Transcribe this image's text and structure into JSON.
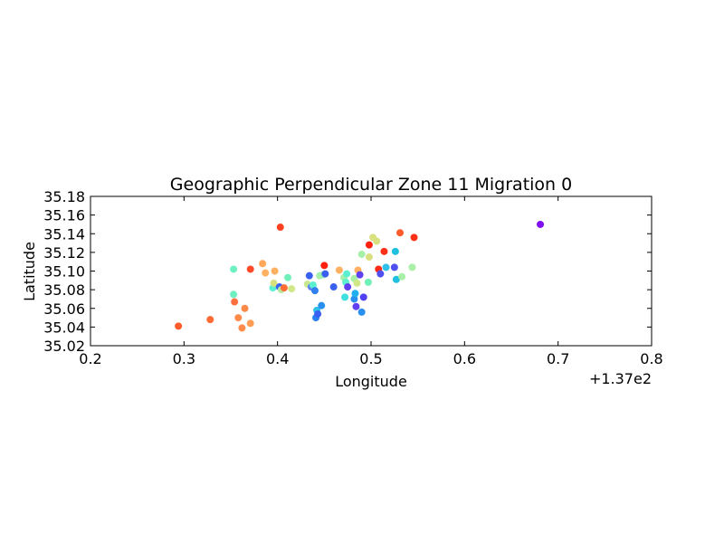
{
  "chart_data": {
    "type": "scatter",
    "title": "Geographic Perpendicular Zone 11 Migration 0",
    "xlabel": "Longitude",
    "ylabel": "Latitude",
    "x_offset_label": "+1.37e2",
    "xlim": [
      137.2,
      137.8
    ],
    "ylim": [
      35.02,
      35.18
    ],
    "x_ticks": [
      137.2,
      137.3,
      137.4,
      137.5,
      137.6,
      137.7,
      137.8
    ],
    "x_tick_labels": [
      "0.2",
      "0.3",
      "0.4",
      "0.5",
      "0.6",
      "0.7",
      "0.8"
    ],
    "y_ticks": [
      35.02,
      35.04,
      35.06,
      35.08,
      35.1,
      35.12,
      35.14,
      35.16,
      35.18
    ],
    "y_tick_labels": [
      "35.02",
      "35.04",
      "35.06",
      "35.08",
      "35.10",
      "35.12",
      "35.14",
      "35.16",
      "35.18"
    ],
    "grid": false,
    "legend": "none",
    "points": [
      {
        "x": 137.294,
        "y": 35.041,
        "color": "#ff5a2b"
      },
      {
        "x": 137.328,
        "y": 35.048,
        "color": "#ff6a35"
      },
      {
        "x": 137.353,
        "y": 35.102,
        "color": "#6ef0c0"
      },
      {
        "x": 137.353,
        "y": 35.075,
        "color": "#6ef0c0"
      },
      {
        "x": 137.354,
        "y": 35.067,
        "color": "#ff7040"
      },
      {
        "x": 137.358,
        "y": 35.05,
        "color": "#ff8a4a"
      },
      {
        "x": 137.362,
        "y": 35.039,
        "color": "#ff8a4a"
      },
      {
        "x": 137.365,
        "y": 35.06,
        "color": "#ff8a4a"
      },
      {
        "x": 137.371,
        "y": 35.044,
        "color": "#ff9c55"
      },
      {
        "x": 137.371,
        "y": 35.102,
        "color": "#ff4a28"
      },
      {
        "x": 137.384,
        "y": 35.108,
        "color": "#ffa85a"
      },
      {
        "x": 137.387,
        "y": 35.098,
        "color": "#ffb060"
      },
      {
        "x": 137.395,
        "y": 35.082,
        "color": "#5af0d0"
      },
      {
        "x": 137.396,
        "y": 35.087,
        "color": "#d8e080"
      },
      {
        "x": 137.397,
        "y": 35.1,
        "color": "#ffb060"
      },
      {
        "x": 137.402,
        "y": 35.083,
        "color": "#3a60f0"
      },
      {
        "x": 137.403,
        "y": 35.147,
        "color": "#ff4020"
      },
      {
        "x": 137.404,
        "y": 35.08,
        "color": "#b8e8a0"
      },
      {
        "x": 137.407,
        "y": 35.082,
        "color": "#ff6a35"
      },
      {
        "x": 137.411,
        "y": 35.093,
        "color": "#70f0b8"
      },
      {
        "x": 137.415,
        "y": 35.081,
        "color": "#d0e888"
      },
      {
        "x": 137.432,
        "y": 35.086,
        "color": "#c8e890"
      },
      {
        "x": 137.434,
        "y": 35.095,
        "color": "#3a60f0"
      },
      {
        "x": 137.436,
        "y": 35.083,
        "color": "#6080f0"
      },
      {
        "x": 137.438,
        "y": 35.085,
        "color": "#5af0d0"
      },
      {
        "x": 137.44,
        "y": 35.079,
        "color": "#3080f0"
      },
      {
        "x": 137.441,
        "y": 35.05,
        "color": "#2a80f0"
      },
      {
        "x": 137.442,
        "y": 35.058,
        "color": "#30c0e8"
      },
      {
        "x": 137.443,
        "y": 35.054,
        "color": "#3a60f0"
      },
      {
        "x": 137.445,
        "y": 35.095,
        "color": "#a8f0a8"
      },
      {
        "x": 137.447,
        "y": 35.063,
        "color": "#2a90f0"
      },
      {
        "x": 137.449,
        "y": 35.096,
        "color": "#9af0b0"
      },
      {
        "x": 137.45,
        "y": 35.106,
        "color": "#ff2010"
      },
      {
        "x": 137.451,
        "y": 35.097,
        "color": "#3a60f0"
      },
      {
        "x": 137.46,
        "y": 35.083,
        "color": "#3a60f0"
      },
      {
        "x": 137.466,
        "y": 35.101,
        "color": "#ffb060"
      },
      {
        "x": 137.471,
        "y": 35.093,
        "color": "#a8f0a8"
      },
      {
        "x": 137.472,
        "y": 35.072,
        "color": "#40e0e0"
      },
      {
        "x": 137.473,
        "y": 35.088,
        "color": "#5af0d0"
      },
      {
        "x": 137.474,
        "y": 35.097,
        "color": "#5af0d0"
      },
      {
        "x": 137.475,
        "y": 35.083,
        "color": "#6040f0"
      },
      {
        "x": 137.482,
        "y": 35.07,
        "color": "#2a90f0"
      },
      {
        "x": 137.482,
        "y": 35.092,
        "color": "#a8f0a8"
      },
      {
        "x": 137.483,
        "y": 35.076,
        "color": "#20b0f0"
      },
      {
        "x": 137.484,
        "y": 35.062,
        "color": "#6040f0"
      },
      {
        "x": 137.485,
        "y": 35.087,
        "color": "#d0e888"
      },
      {
        "x": 137.486,
        "y": 35.101,
        "color": "#ffb060"
      },
      {
        "x": 137.488,
        "y": 35.096,
        "color": "#6040f0"
      },
      {
        "x": 137.49,
        "y": 35.056,
        "color": "#2a90f0"
      },
      {
        "x": 137.49,
        "y": 35.118,
        "color": "#a8f0a8"
      },
      {
        "x": 137.492,
        "y": 35.072,
        "color": "#5040f0"
      },
      {
        "x": 137.497,
        "y": 35.088,
        "color": "#70f0b8"
      },
      {
        "x": 137.498,
        "y": 35.115,
        "color": "#d8e080"
      },
      {
        "x": 137.498,
        "y": 35.128,
        "color": "#ff2010"
      },
      {
        "x": 137.502,
        "y": 35.136,
        "color": "#d8e080"
      },
      {
        "x": 137.506,
        "y": 35.132,
        "color": "#d8e080"
      },
      {
        "x": 137.508,
        "y": 35.102,
        "color": "#ff2a15"
      },
      {
        "x": 137.51,
        "y": 35.097,
        "color": "#5050f0"
      },
      {
        "x": 137.514,
        "y": 35.121,
        "color": "#ff3018"
      },
      {
        "x": 137.516,
        "y": 35.104,
        "color": "#30c0e8"
      },
      {
        "x": 137.525,
        "y": 35.104,
        "color": "#5050f0"
      },
      {
        "x": 137.526,
        "y": 35.121,
        "color": "#20c0e0"
      },
      {
        "x": 137.527,
        "y": 35.091,
        "color": "#20c0e0"
      },
      {
        "x": 137.531,
        "y": 35.141,
        "color": "#ff5a2b"
      },
      {
        "x": 137.533,
        "y": 35.094,
        "color": "#a8f0a8"
      },
      {
        "x": 137.544,
        "y": 35.104,
        "color": "#a8f0a8"
      },
      {
        "x": 137.546,
        "y": 35.136,
        "color": "#ff3018"
      },
      {
        "x": 137.681,
        "y": 35.15,
        "color": "#8010f0"
      }
    ]
  }
}
